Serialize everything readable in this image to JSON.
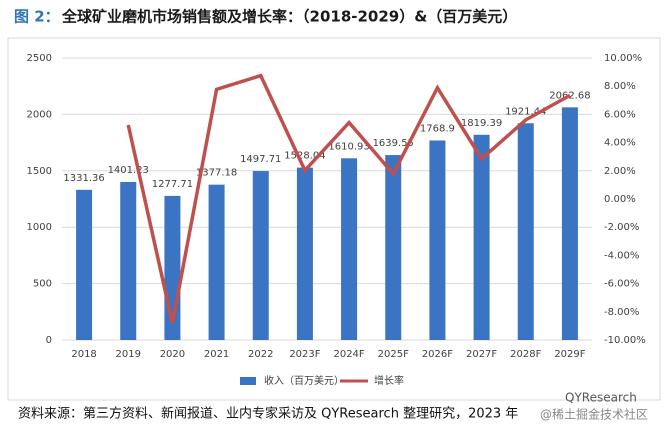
{
  "chart_data": {
    "type": "bar_line",
    "figure_label": "图 2：",
    "title": "全球矿业磨机市场销售额及增长率：（2018-2029）&（百万美元）",
    "categories": [
      "2018",
      "2019",
      "2020",
      "2021",
      "2022",
      "2023F",
      "2024F",
      "2025F",
      "2026F",
      "2027F",
      "2028F",
      "2029F"
    ],
    "series": [
      {
        "name": "收入（百万美元）",
        "color": "#3b74c2",
        "axis": "y",
        "values": [
          1331.36,
          1401.23,
          1277.71,
          1377.18,
          1497.71,
          1528.04,
          1610.93,
          1639.55,
          1768.9,
          1819.39,
          1921.44,
          2062.68
        ]
      },
      {
        "name": "增长率",
        "color": "#c0504d",
        "axis": "y2",
        "values": [
          null,
          5.25,
          -8.82,
          7.78,
          8.75,
          2.03,
          5.42,
          1.78,
          7.89,
          2.85,
          5.61,
          7.35
        ]
      }
    ],
    "ylim": [
      0,
      2500
    ],
    "yticks": [
      0,
      500,
      1000,
      1500,
      2000,
      2500
    ],
    "y2lim": [
      -10,
      10
    ],
    "y2ticks": [
      {
        "value": -10,
        "label": "-10.00%"
      },
      {
        "value": -8,
        "label": "-8.00%"
      },
      {
        "value": -6,
        "label": "-6.00%"
      },
      {
        "value": -4,
        "label": "-4.00%"
      },
      {
        "value": -2,
        "label": "-2.00%"
      },
      {
        "value": 0,
        "label": "0.00%"
      },
      {
        "value": 2,
        "label": "2.00%"
      },
      {
        "value": 4,
        "label": "4.00%"
      },
      {
        "value": 6,
        "label": "6.00%"
      },
      {
        "value": 8,
        "label": "8.00%"
      },
      {
        "value": 10,
        "label": "10.00%"
      }
    ],
    "grid": true,
    "source": "资料来源：第三方资料、新闻报道、业内专家采访及 QYResearch 整理研究，2023 年",
    "watermark": [
      "QYResearch",
      "@稀土掘金技术社区"
    ]
  }
}
